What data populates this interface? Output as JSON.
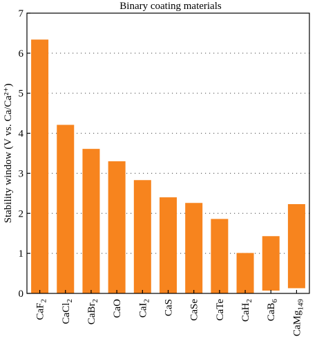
{
  "chart_data": {
    "type": "bar",
    "title": "Binary coating materials",
    "ylabel": "Stability window (V vs. Ca/Ca²⁺)",
    "xlabel": "",
    "ylim": [
      0,
      7
    ],
    "yticks": [
      0,
      1,
      2,
      3,
      4,
      5,
      6,
      7
    ],
    "grid": "horizontal-dotted",
    "legend": "none",
    "bar_color": "#f7841e",
    "categories": [
      {
        "base": "CaF",
        "sub": "2"
      },
      {
        "base": "CaCl",
        "sub": "2"
      },
      {
        "base": "CaBr",
        "sub": "2"
      },
      {
        "base": "CaO",
        "sub": ""
      },
      {
        "base": "CaI",
        "sub": "2"
      },
      {
        "base": "CaS",
        "sub": ""
      },
      {
        "base": "CaSe",
        "sub": ""
      },
      {
        "base": "CaTe",
        "sub": ""
      },
      {
        "base": "CaH",
        "sub": "2"
      },
      {
        "base": "CaB",
        "sub": "6"
      },
      {
        "base": "CaMg",
        "sub": "149"
      }
    ],
    "ranges": [
      [
        0,
        6.34
      ],
      [
        0,
        4.21
      ],
      [
        0,
        3.61
      ],
      [
        0,
        3.3
      ],
      [
        0,
        2.83
      ],
      [
        0,
        2.4
      ],
      [
        0,
        2.26
      ],
      [
        0,
        1.86
      ],
      [
        0,
        1.01
      ],
      [
        0.07,
        1.43
      ],
      [
        0.13,
        2.23
      ]
    ]
  }
}
